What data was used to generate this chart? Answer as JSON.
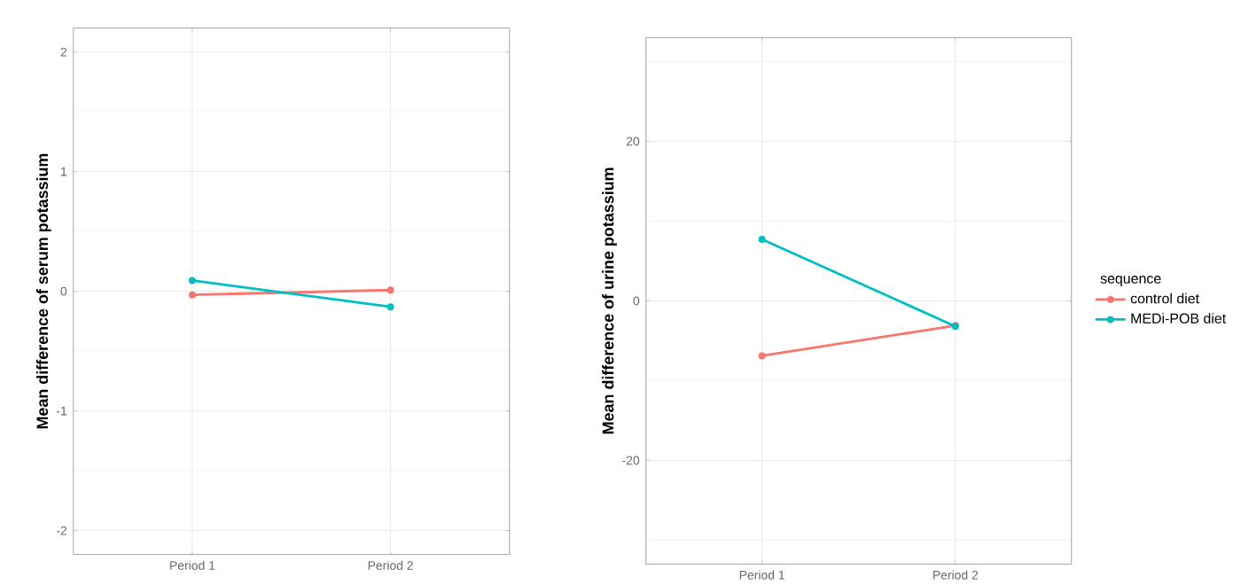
{
  "chart_data": [
    {
      "type": "line",
      "ylabel": "Mean difference of serum potassium",
      "categories": [
        "Period 1",
        "Period 2"
      ],
      "series": [
        {
          "color": "#f8766d",
          "values": [
            -0.03,
            0.01
          ]
        },
        {
          "color": "#00bfc4",
          "values": [
            0.09,
            -0.13
          ]
        }
      ],
      "ylim": [
        -2.2,
        2.2
      ],
      "yticks": [
        -2,
        -1,
        0,
        1,
        2
      ],
      "grid": true,
      "marker": "circle",
      "legend": false
    },
    {
      "type": "line",
      "ylabel": "Mean difference of urine potassium",
      "categories": [
        "Period 1",
        "Period 2"
      ],
      "series": [
        {
          "name": "control diet",
          "color": "#f8766d",
          "values": [
            -6.9,
            -3.1
          ]
        },
        {
          "name": "MEDi-POB diet",
          "color": "#00bfc4",
          "values": [
            7.7,
            -3.2
          ]
        }
      ],
      "ylim": [
        -33,
        33
      ],
      "yticks": [
        -20,
        0,
        20
      ],
      "grid": true,
      "marker": "circle",
      "legend": "right",
      "legend_title": "sequence"
    }
  ]
}
